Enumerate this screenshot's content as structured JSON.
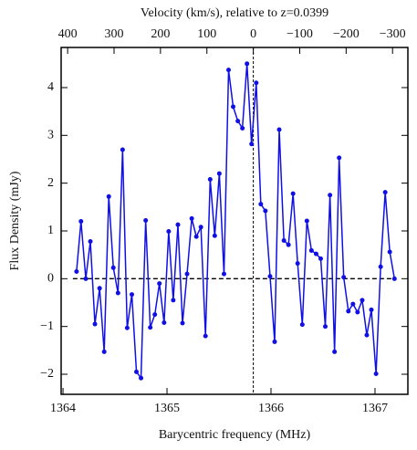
{
  "chart_data": {
    "type": "line",
    "x2label": "Velocity (km/s), relative to z=0.0399",
    "xlabel": "Barycentric frequency (MHz)",
    "ylabel": "Flux Density (mJy)",
    "color": "#1010e6",
    "xlim": [
      1363.982,
      1367.316
    ],
    "ylim": [
      -2.42,
      4.84
    ],
    "x2lim": [
      414,
      -333
    ],
    "xticks": [
      1364,
      1365,
      1366,
      1367
    ],
    "x2ticks": [
      400,
      300,
      200,
      100,
      0,
      {
        "value": -100,
        "label": "−100"
      },
      {
        "value": -200,
        "label": "−200"
      },
      {
        "value": -300,
        "label": "−300"
      }
    ],
    "yticks": [
      {
        "value": -2,
        "label": "−2"
      },
      {
        "value": -1,
        "label": "−1"
      },
      0,
      1,
      2,
      3,
      4
    ],
    "hline_y": 0,
    "vline_x": 1365.83,
    "x": [
      1364.13,
      1364.173,
      1364.219,
      1364.263,
      1364.307,
      1364.352,
      1364.396,
      1364.44,
      1364.484,
      1364.529,
      1364.573,
      1364.617,
      1364.662,
      1364.706,
      1364.75,
      1364.795,
      1364.839,
      1364.883,
      1364.927,
      1364.972,
      1365.016,
      1365.06,
      1365.105,
      1365.149,
      1365.193,
      1365.238,
      1365.282,
      1365.326,
      1365.37,
      1365.415,
      1365.459,
      1365.503,
      1365.548,
      1365.592,
      1365.636,
      1365.681,
      1365.725,
      1365.769,
      1365.813,
      1365.858,
      1365.902,
      1365.946,
      1365.991,
      1366.035,
      1366.079,
      1366.124,
      1366.168,
      1366.212,
      1366.256,
      1366.301,
      1366.345,
      1366.389,
      1366.434,
      1366.478,
      1366.522,
      1366.567,
      1366.611,
      1366.655,
      1366.699,
      1366.744,
      1366.788,
      1366.832,
      1366.877,
      1366.921,
      1366.965,
      1367.01,
      1367.054,
      1367.098,
      1367.142,
      1367.187
    ],
    "values": [
      0.15,
      1.2,
      0.0,
      0.78,
      -0.95,
      -0.2,
      -1.53,
      1.72,
      0.23,
      -0.3,
      2.7,
      -1.03,
      -0.33,
      -1.95,
      -2.08,
      1.22,
      -1.02,
      -0.75,
      -0.1,
      -0.92,
      0.99,
      -0.45,
      1.13,
      -0.93,
      0.1,
      1.26,
      0.88,
      1.08,
      -1.2,
      2.08,
      0.9,
      2.2,
      0.1,
      4.37,
      3.6,
      3.3,
      3.15,
      4.5,
      2.82,
      4.1,
      1.56,
      1.42,
      0.05,
      -1.32,
      3.12,
      0.8,
      0.71,
      1.78,
      0.32,
      -0.96,
      1.21,
      0.59,
      0.52,
      0.42,
      -1.0,
      1.75,
      -1.53,
      2.53,
      0.03,
      -0.68,
      -0.53,
      -0.7,
      -0.45,
      -1.18,
      -0.65,
      -1.99,
      0.25,
      1.81,
      0.56,
      0.0
    ]
  }
}
